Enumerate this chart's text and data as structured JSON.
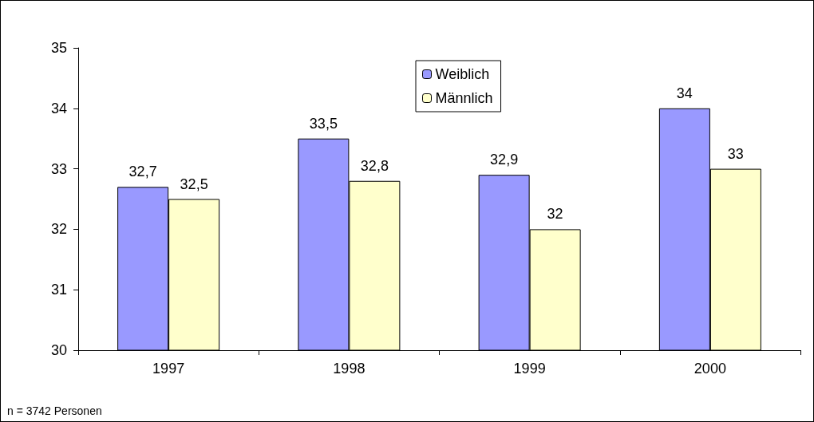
{
  "chart_data": {
    "type": "bar",
    "categories": [
      "1997",
      "1998",
      "1999",
      "2000"
    ],
    "series": [
      {
        "name": "Weiblich",
        "color": "#9999ff",
        "values": [
          32.7,
          33.5,
          32.9,
          34
        ],
        "value_labels": [
          "32,7",
          "33,5",
          "32,9",
          "34"
        ]
      },
      {
        "name": "Männlich",
        "color": "#ffffcc",
        "values": [
          32.5,
          32.8,
          32,
          33
        ],
        "value_labels": [
          "32,5",
          "32,8",
          "32",
          "33"
        ]
      }
    ],
    "ylim": [
      30,
      35
    ],
    "yticks": [
      30,
      31,
      32,
      33,
      34,
      35
    ],
    "grid": false,
    "legend": "top",
    "annotations": [
      "n = 3742 Personen"
    ]
  }
}
